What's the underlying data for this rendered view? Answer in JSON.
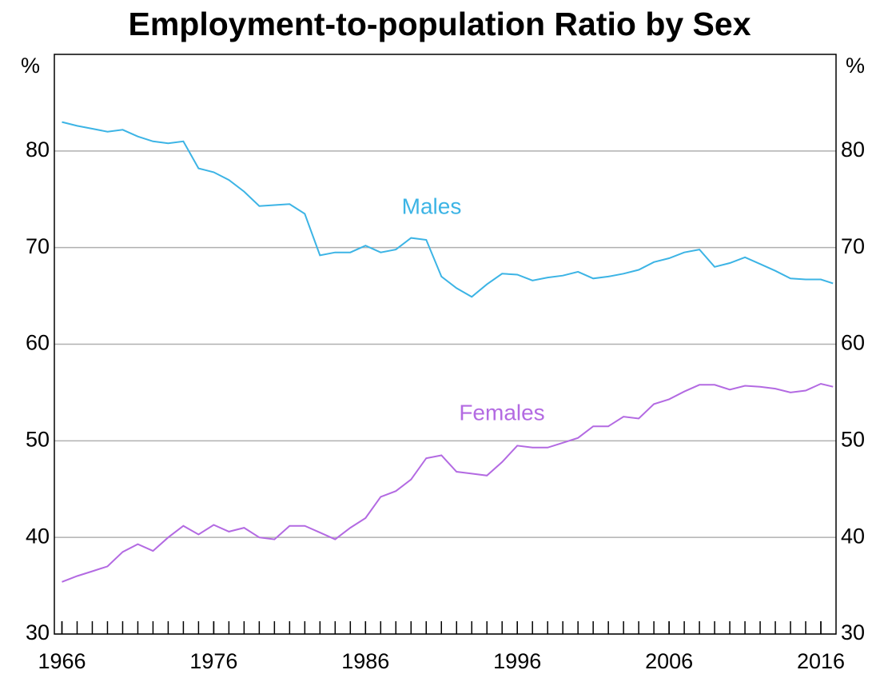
{
  "chart_data": {
    "type": "line",
    "title": "Employment-to-population Ratio by Sex",
    "ylabel": "%",
    "y2label": "%",
    "xlim": [
      1965.5,
      2017
    ],
    "xticks": [
      1966,
      1976,
      1986,
      1996,
      2006,
      2016
    ],
    "xminorticks": [
      1966,
      1967,
      1968,
      1969,
      1970,
      1971,
      1972,
      1973,
      1974,
      1975,
      1976,
      1977,
      1978,
      1979,
      1980,
      1981,
      1982,
      1983,
      1984,
      1985,
      1986,
      1987,
      1988,
      1989,
      1990,
      1991,
      1992,
      1993,
      1994,
      1995,
      1996,
      1997,
      1998,
      1999,
      2000,
      2001,
      2002,
      2003,
      2004,
      2005,
      2006,
      2007,
      2008,
      2009,
      2010,
      2011,
      2012,
      2013,
      2014,
      2015,
      2016
    ],
    "ylim": [
      30,
      90
    ],
    "yticks": [
      30,
      40,
      50,
      60,
      70,
      80
    ],
    "y2lim": [
      30,
      90
    ],
    "y2ticks": [
      30,
      40,
      50,
      60,
      70,
      80
    ],
    "grid": true,
    "series": [
      {
        "name": "Males",
        "color": "#3cb4e5",
        "x": [
          1966,
          1967,
          1968,
          1969,
          1970,
          1971,
          1972,
          1973,
          1974,
          1975,
          1976,
          1977,
          1978,
          1979,
          1980,
          1981,
          1982,
          1983,
          1984,
          1985,
          1986,
          1987,
          1988,
          1989,
          1990,
          1991,
          1992,
          1993,
          1994,
          1995,
          1996,
          1997,
          1998,
          1999,
          2000,
          2001,
          2002,
          2003,
          2004,
          2005,
          2006,
          2007,
          2008,
          2009,
          2010,
          2011,
          2012,
          2013,
          2014,
          2015,
          2016,
          2016.8
        ],
        "values": [
          83,
          82.6,
          82.3,
          82,
          82.2,
          81.5,
          81,
          80.8,
          81,
          78.2,
          77.8,
          77,
          75.8,
          74.3,
          74.4,
          74.5,
          73.5,
          69.2,
          69.5,
          69.5,
          70.2,
          69.5,
          69.8,
          71,
          70.8,
          67,
          65.8,
          64.9,
          66.2,
          67.3,
          67.2,
          66.6,
          66.9,
          67.1,
          67.5,
          66.8,
          67,
          67.3,
          67.7,
          68.5,
          68.9,
          69.5,
          69.8,
          68,
          68.4,
          69,
          68.3,
          67.6,
          66.8,
          66.7,
          66.7,
          66.3
        ]
      },
      {
        "name": "Females",
        "color": "#b36ae2",
        "x": [
          1966,
          1967,
          1968,
          1969,
          1970,
          1971,
          1972,
          1973,
          1974,
          1975,
          1976,
          1977,
          1978,
          1979,
          1980,
          1981,
          1982,
          1983,
          1984,
          1985,
          1986,
          1987,
          1988,
          1989,
          1990,
          1991,
          1992,
          1993,
          1994,
          1995,
          1996,
          1997,
          1998,
          1999,
          2000,
          2001,
          2002,
          2003,
          2004,
          2005,
          2006,
          2007,
          2008,
          2009,
          2010,
          2011,
          2012,
          2013,
          2014,
          2015,
          2016,
          2016.8
        ],
        "values": [
          35.4,
          36,
          36.5,
          37,
          38.5,
          39.3,
          38.6,
          40,
          41.2,
          40.3,
          41.3,
          40.6,
          41,
          40,
          39.8,
          41.2,
          41.2,
          40.5,
          39.8,
          41,
          42,
          44.2,
          44.8,
          46,
          48.2,
          48.5,
          46.8,
          46.6,
          46.4,
          47.8,
          49.5,
          49.3,
          49.3,
          49.8,
          50.3,
          51.5,
          51.5,
          52.5,
          52.3,
          53.8,
          54.3,
          55.1,
          55.8,
          55.8,
          55.3,
          55.7,
          55.6,
          55.4,
          55,
          55.2,
          55.9,
          55.6
        ]
      }
    ]
  }
}
